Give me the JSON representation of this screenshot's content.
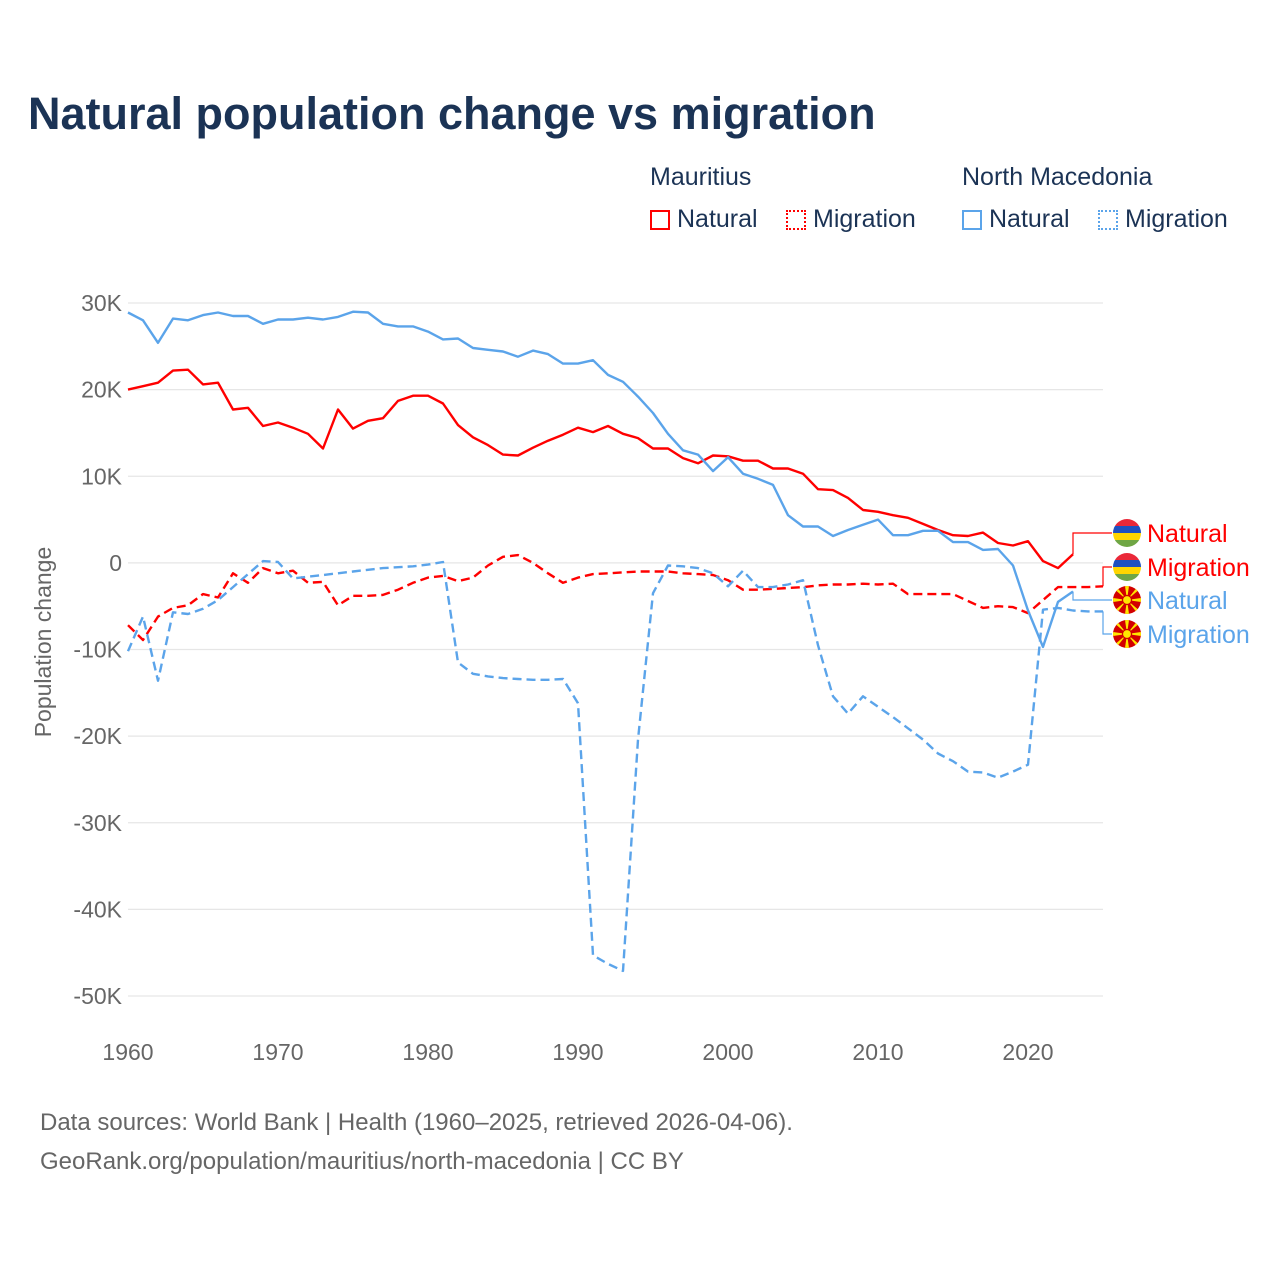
{
  "title": "Natural population change vs migration",
  "legend": {
    "groups": [
      {
        "country": "Mauritius",
        "items": [
          "Natural",
          "Migration"
        ],
        "color": "#ff0000"
      },
      {
        "country": "North Macedonia",
        "items": [
          "Natural",
          "Migration"
        ],
        "color": "#5ba4ea"
      }
    ]
  },
  "footer": {
    "line1": "Data sources: World Bank | Health (1960–2025, retrieved 2026-04-06).",
    "line2": "GeoRank.org/population/mauritius/north-macedonia | CC BY"
  },
  "chart_data": {
    "type": "line",
    "title": "Natural population change vs migration",
    "xlabel": "",
    "ylabel": "Population change",
    "xlim": [
      1960,
      2025
    ],
    "ylim": [
      -50000,
      30000
    ],
    "x_ticks": [
      "1960",
      "1970",
      "1980",
      "1990",
      "2000",
      "2010",
      "2020"
    ],
    "y_ticks": [
      {
        "v": 30000,
        "label": "30K"
      },
      {
        "v": 20000,
        "label": "20K"
      },
      {
        "v": 10000,
        "label": "10K"
      },
      {
        "v": 0,
        "label": "0"
      },
      {
        "v": -10000,
        "label": "-10K"
      },
      {
        "v": -20000,
        "label": "-20K"
      },
      {
        "v": -30000,
        "label": "-30K"
      },
      {
        "v": -40000,
        "label": "-40K"
      },
      {
        "v": -50000,
        "label": "-50K"
      }
    ],
    "grid": true,
    "legend_placement": "top-right",
    "series": [
      {
        "name": "Natural",
        "country": "Mauritius",
        "color": "#ff0000",
        "style": "solid",
        "start_year": 1960,
        "values": [
          20.0,
          20.4,
          20.8,
          22.2,
          22.3,
          20.6,
          20.8,
          17.7,
          17.9,
          15.8,
          16.2,
          15.6,
          14.9,
          13.2,
          17.7,
          15.5,
          16.4,
          16.7,
          18.7,
          19.3,
          19.3,
          18.4,
          15.9,
          14.5,
          13.6,
          12.5,
          12.4,
          13.3,
          14.1,
          14.8,
          15.6,
          15.1,
          15.8,
          14.9,
          14.4,
          13.2,
          13.2,
          12.1,
          11.5,
          12.4,
          12.3,
          11.8,
          11.8,
          10.9,
          10.9,
          10.3,
          8.5,
          8.4,
          7.5,
          6.1,
          5.9,
          5.5,
          5.2,
          4.5,
          3.8,
          3.2,
          3.1,
          3.5,
          2.3,
          2.0,
          2.5,
          0.2,
          -0.6,
          1.0
        ]
      },
      {
        "name": "Migration",
        "country": "Mauritius",
        "color": "#ff0000",
        "style": "dashed",
        "start_year": 1960,
        "values": [
          -7.2,
          -8.9,
          -6.2,
          -5.2,
          -4.9,
          -3.6,
          -4.0,
          -1.2,
          -2.3,
          -0.6,
          -1.2,
          -0.9,
          -2.3,
          -2.2,
          -4.9,
          -3.8,
          -3.8,
          -3.7,
          -3.1,
          -2.3,
          -1.7,
          -1.5,
          -2.1,
          -1.7,
          -0.3,
          0.7,
          0.9,
          0.0,
          -1.2,
          -2.3,
          -1.7,
          -1.3,
          -1.2,
          -1.1,
          -1.0,
          -1.0,
          -1.0,
          -1.2,
          -1.3,
          -1.4,
          -2.0,
          -3.1,
          -3.1,
          -3.0,
          -2.9,
          -2.8,
          -2.6,
          -2.5,
          -2.5,
          -2.4,
          -2.5,
          -2.4,
          -3.6,
          -3.6,
          -3.6,
          -3.6,
          -4.4,
          -5.2,
          -5.0,
          -5.1,
          -5.8,
          -4.3,
          -2.8,
          -2.8,
          -2.8,
          -2.7
        ]
      },
      {
        "name": "Natural",
        "country": "North Macedonia",
        "color": "#5ba4ea",
        "style": "solid",
        "start_year": 1960,
        "values": [
          28.9,
          28.0,
          25.4,
          28.2,
          28.0,
          28.6,
          28.9,
          28.5,
          28.5,
          27.6,
          28.1,
          28.1,
          28.3,
          28.1,
          28.4,
          29.0,
          28.9,
          27.6,
          27.3,
          27.3,
          26.7,
          25.8,
          25.9,
          24.8,
          24.6,
          24.4,
          23.8,
          24.5,
          24.1,
          23.0,
          23.0,
          23.4,
          21.7,
          20.9,
          19.2,
          17.3,
          14.9,
          13.0,
          12.5,
          10.6,
          12.2,
          10.3,
          9.7,
          9.0,
          5.5,
          4.2,
          4.2,
          3.1,
          3.8,
          4.4,
          5.0,
          3.2,
          3.2,
          3.7,
          3.7,
          2.4,
          2.4,
          1.5,
          1.6,
          -0.3,
          -5.5,
          -9.7,
          -4.5,
          -3.3
        ]
      },
      {
        "name": "Migration",
        "country": "North Macedonia",
        "color": "#5ba4ea",
        "style": "dashed",
        "start_year": 1960,
        "values": [
          -10.2,
          -6.2,
          -13.6,
          -5.7,
          -5.9,
          -5.3,
          -4.3,
          -2.8,
          -1.3,
          0.2,
          0.1,
          -1.8,
          -1.6,
          -1.4,
          -1.2,
          -1.0,
          -0.8,
          -0.6,
          -0.5,
          -0.4,
          -0.2,
          0.1,
          -11.5,
          -12.8,
          -13.1,
          -13.3,
          -13.4,
          -13.5,
          -13.5,
          -13.4,
          -16.2,
          -45.3,
          -46.3,
          -47.1,
          -20.4,
          -3.5,
          -0.3,
          -0.4,
          -0.6,
          -1.2,
          -2.7,
          -0.9,
          -2.8,
          -2.8,
          -2.5,
          -2.0,
          -9.5,
          -15.4,
          -17.4,
          -15.4,
          -16.6,
          -17.8,
          -19.1,
          -20.4,
          -22.0,
          -22.9,
          -24.1,
          -24.2,
          -24.8,
          -24.1,
          -23.3,
          -5.4,
          -5.2,
          -5.5,
          -5.6,
          -5.6
        ]
      }
    ],
    "values_unit": "thousands",
    "end_labels": [
      "Natural",
      "Migration",
      "Natural",
      "Migration"
    ]
  }
}
